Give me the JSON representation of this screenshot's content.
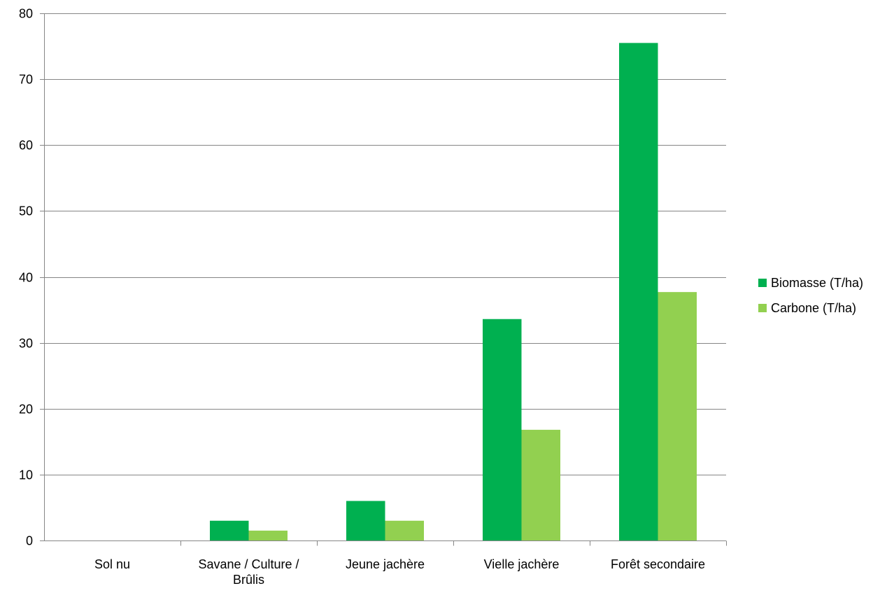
{
  "chart_data": {
    "type": "bar",
    "categories": [
      [
        "Sol nu"
      ],
      [
        "Savane / Culture /",
        "Brûlis"
      ],
      [
        "Jeune jachère"
      ],
      [
        "Vielle jachère"
      ],
      [
        "Forêt secondaire"
      ]
    ],
    "series": [
      {
        "name": "Biomasse (T/ha)",
        "values": [
          0,
          3,
          6,
          33.6,
          75.5
        ],
        "color": "#00B050"
      },
      {
        "name": "Carbone (T/ha)",
        "values": [
          0,
          1.5,
          3,
          16.8,
          37.7
        ],
        "color": "#92D050"
      }
    ],
    "title": "",
    "xlabel": "",
    "ylabel": "",
    "ylim": [
      0,
      80
    ],
    "yticks": [
      "0",
      "10",
      "20",
      "30",
      "40",
      "50",
      "60",
      "70",
      "80"
    ],
    "grid": true,
    "legend_position": "right"
  }
}
